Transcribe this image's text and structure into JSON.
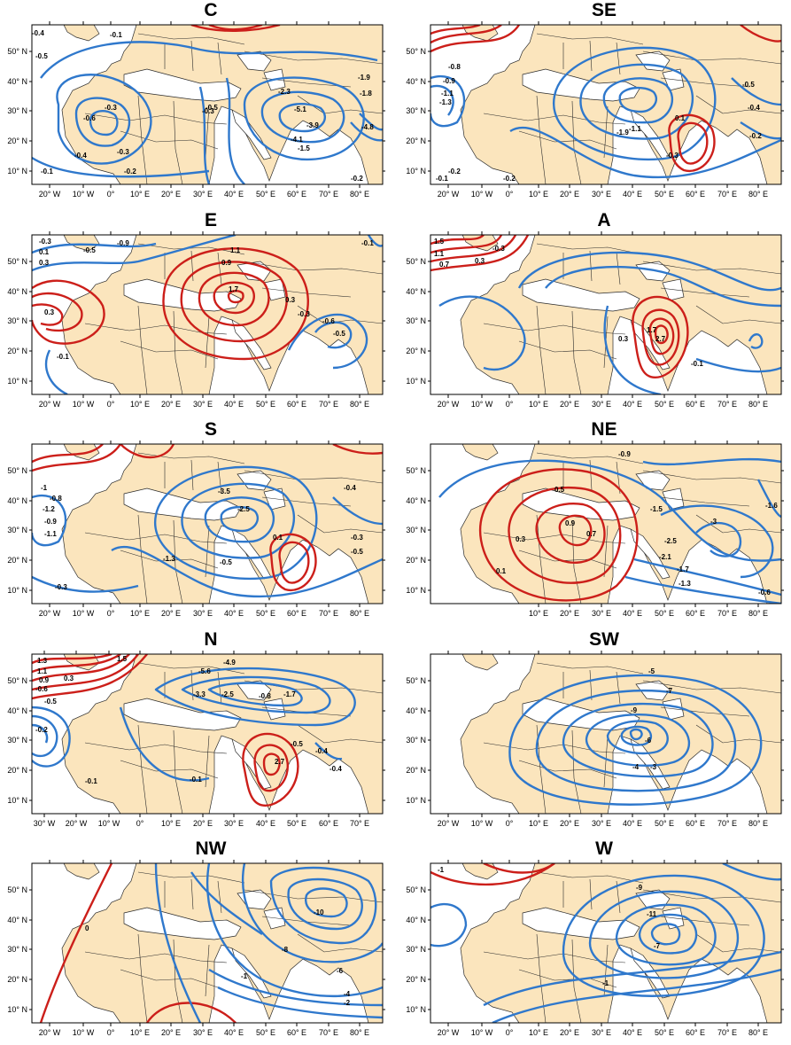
{
  "colors": {
    "land": "#fbe5bd",
    "sea": "#ffffff",
    "negative_contour": "#2f78cc",
    "positive_contour": "#cc1f1a",
    "border": "#2b2b2b"
  },
  "lat_labels": [
    "50° N",
    "40° N",
    "30° N",
    "20° N",
    "10° N"
  ],
  "panels": [
    {
      "title": "C",
      "lon_labels": [
        "20° W",
        "10° W",
        "0°",
        "10° E",
        "20° E",
        "30° E",
        "40° E",
        "50° E",
        "60° E",
        "70° E",
        "80° E"
      ],
      "contour_labels": [
        "-0.4",
        "-0.5",
        "-0.1",
        "-0.3",
        "-0.6",
        "-0.3",
        "-0.4",
        "-0.2",
        "-0.1",
        "-0.3",
        "-0.5",
        "-2.3",
        "-5.1",
        "-4.1",
        "-3.9",
        "-1.5",
        "-1.9",
        "-1.8",
        "-4.8",
        "-0.2"
      ]
    },
    {
      "title": "SE",
      "lon_labels": [
        "20° W",
        "10° W",
        "0°",
        "10° E",
        "20° E",
        "30° E",
        "40° E",
        "50° E",
        "60° E",
        "70° E",
        "80° E"
      ],
      "contour_labels": [
        "-0.8",
        "-0.9",
        "-1.1",
        "-1.3",
        "-0.2",
        "-0.1",
        "-0.2",
        "-1.9",
        "-1.1",
        "0.1",
        "-0.3",
        "-0.5",
        "-0.4",
        "-0.2"
      ]
    },
    {
      "title": "E",
      "lon_labels": [
        "20° W",
        "10° W",
        "0°",
        "10° E",
        "20° E",
        "30° E",
        "40° E",
        "50° E",
        "60° E",
        "70° E",
        "80° E"
      ],
      "contour_labels": [
        "-0.3",
        "0.1",
        "0.3",
        "0.3",
        "-0.5",
        "-0.9",
        "1.1",
        "0.9",
        "1.7",
        "0.3",
        "-0.3",
        "-0.6",
        "-0.5",
        "-0.1",
        "-0.1"
      ]
    },
    {
      "title": "A",
      "lon_labels": [
        "20° W",
        "10° W",
        "0°",
        "10° E",
        "20° E",
        "30° E",
        "40° E",
        "50° E",
        "60° E",
        "70° E",
        "80° E"
      ],
      "contour_labels": [
        "1.5",
        "1.1",
        "0.7",
        "0.3",
        "-0.3",
        "0.3",
        "1.7",
        "2.7",
        "-0.1"
      ]
    },
    {
      "title": "S",
      "lon_labels": [
        "20° W",
        "10° W",
        "0°",
        "10° E",
        "20° E",
        "30° E",
        "40° E",
        "50° E",
        "60° E",
        "70° E",
        "80° E"
      ],
      "contour_labels": [
        "-1",
        "-0.8",
        "-1.2",
        "-0.9",
        "-1.1",
        "-3.5",
        "-2.5",
        "0.1",
        "-0.5",
        "-1.3",
        "-0.3",
        "-0.4",
        "-0.3",
        "-0.5"
      ]
    },
    {
      "title": "NE",
      "lon_labels": [
        "10° E",
        "20° E",
        "30° E",
        "40° E",
        "50° E",
        "60° E",
        "70° E",
        "80° E"
      ],
      "contour_labels": [
        "0.5",
        "0.9",
        "0.7",
        "0.3",
        "0.1",
        "-0.9",
        "-1.5",
        "-2.5",
        "-2.1",
        "-1.7",
        "-1.3",
        "-0.6",
        "-3",
        "-1.6"
      ]
    },
    {
      "title": "N",
      "lon_labels": [
        "30° W",
        "20° W",
        "10° W",
        "0°",
        "10° E",
        "20° E",
        "30° E",
        "40° E",
        "50° E",
        "60° E",
        "70° E"
      ],
      "contour_labels": [
        "1.3",
        "1.1",
        "0.9",
        "0.3",
        "1.5",
        "-0.6",
        "-0.5",
        "-0.2",
        "-0.1",
        "-0.4",
        "-4.9",
        "-5.6",
        "-3.3",
        "-2.5",
        "-0.8",
        "-1.7",
        "-0.5",
        "-0.1",
        "2.7",
        "-0.4"
      ]
    },
    {
      "title": "SW",
      "lon_labels": [
        "20° W",
        "10° W",
        "0°",
        "10° E",
        "20° E",
        "30° E",
        "40° E",
        "50° E",
        "60° E",
        "70° E",
        "80° E"
      ],
      "contour_labels": [
        "-5",
        "-7",
        "-9",
        "-6",
        "-4",
        "-3"
      ]
    },
    {
      "title": "NW",
      "lon_labels": [
        "20° W",
        "10° W",
        "0°",
        "10° E",
        "20° E",
        "30° E",
        "40° E",
        "50° E",
        "60° E",
        "70° E",
        "80° E"
      ],
      "contour_labels": [
        "0",
        "-10",
        "-8",
        "-1",
        "-6",
        "-4",
        "-2"
      ]
    },
    {
      "title": "W",
      "lon_labels": [
        "20° W",
        "10° W",
        "0°",
        "10° E",
        "20° E",
        "30° E",
        "40° E",
        "50° E",
        "60° E",
        "70° E",
        "80° E"
      ],
      "contour_labels": [
        "-1",
        "-9",
        "-11",
        "-7",
        "-1"
      ]
    }
  ]
}
